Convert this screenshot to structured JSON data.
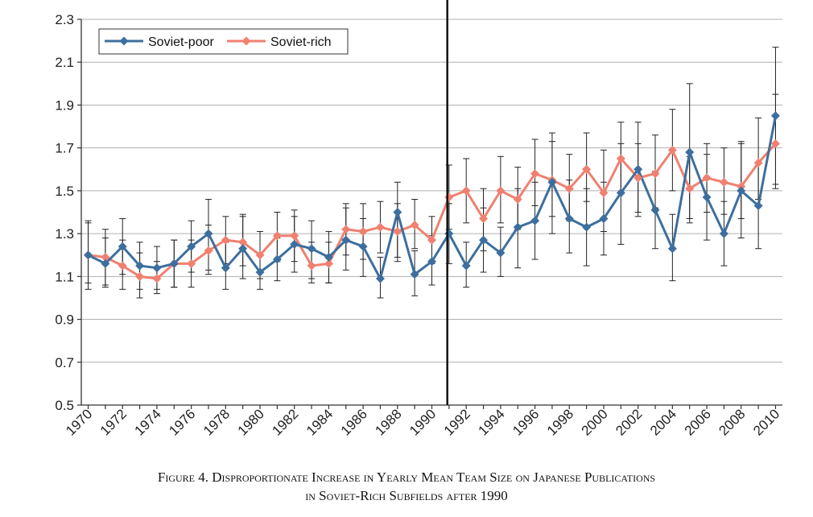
{
  "chart_data": {
    "type": "line",
    "title": "",
    "xlabel": "",
    "ylabel": "",
    "x": [
      1970,
      1971,
      1972,
      1973,
      1974,
      1975,
      1976,
      1977,
      1978,
      1979,
      1980,
      1981,
      1982,
      1983,
      1984,
      1985,
      1986,
      1987,
      1988,
      1989,
      1990,
      1991,
      1992,
      1993,
      1994,
      1995,
      1996,
      1997,
      1998,
      1999,
      2000,
      2001,
      2002,
      2003,
      2004,
      2005,
      2006,
      2007,
      2008,
      2009,
      2010
    ],
    "xticks": [
      1970,
      1972,
      1974,
      1976,
      1978,
      1980,
      1982,
      1984,
      1986,
      1988,
      1990,
      1992,
      1994,
      1996,
      1998,
      2000,
      2002,
      2004,
      2006,
      2008,
      2010
    ],
    "yticks": [
      "0.5",
      "0.7",
      "0.9",
      "1.1",
      "1.3",
      "1.5",
      "1.7",
      "1.9",
      "2.1",
      "2.3"
    ],
    "ylim": [
      0.5,
      2.3
    ],
    "xlim": [
      1969.6,
      2010.4
    ],
    "grid": "horizontal",
    "legend_position": "top-left",
    "vertical_reference_line_x": 1990.9,
    "series": [
      {
        "name": "Soviet-poor",
        "color": "#3d6f9e",
        "marker": "diamond",
        "values": [
          1.2,
          1.16,
          1.24,
          1.15,
          1.14,
          1.16,
          1.24,
          1.3,
          1.14,
          1.23,
          1.12,
          1.18,
          1.25,
          1.23,
          1.19,
          1.27,
          1.24,
          1.09,
          1.4,
          1.11,
          1.17,
          1.3,
          1.15,
          1.27,
          1.21,
          1.33,
          1.36,
          1.54,
          1.37,
          1.33,
          1.37,
          1.49,
          1.6,
          1.41,
          1.23,
          1.68,
          1.47,
          1.3,
          1.5,
          1.43,
          1.85
        ],
        "error_low": [
          1.04,
          1.05,
          1.11,
          1.04,
          1.04,
          1.05,
          1.12,
          1.13,
          1.04,
          1.09,
          1.04,
          1.08,
          1.12,
          1.09,
          1.07,
          1.13,
          1.1,
          1.0,
          1.17,
          1.01,
          1.06,
          1.16,
          1.05,
          1.12,
          1.1,
          1.14,
          1.18,
          1.3,
          1.21,
          1.15,
          1.2,
          1.25,
          1.38,
          1.23,
          1.08,
          1.35,
          1.27,
          1.15,
          1.28,
          1.23,
          1.53
        ],
        "error_high": [
          1.36,
          1.28,
          1.37,
          1.26,
          1.24,
          1.27,
          1.36,
          1.46,
          1.26,
          1.39,
          1.21,
          1.28,
          1.38,
          1.36,
          1.31,
          1.42,
          1.37,
          1.19,
          1.54,
          1.22,
          1.29,
          1.44,
          1.26,
          1.42,
          1.33,
          1.51,
          1.54,
          1.77,
          1.55,
          1.51,
          1.54,
          1.72,
          1.82,
          1.59,
          1.39,
          2.0,
          1.67,
          1.45,
          1.72,
          1.63,
          2.17
        ]
      },
      {
        "name": "Soviet-rich",
        "color": "#f08070",
        "marker": "diamond",
        "values": [
          1.2,
          1.19,
          1.15,
          1.1,
          1.09,
          1.16,
          1.16,
          1.22,
          1.27,
          1.26,
          1.2,
          1.29,
          1.29,
          1.15,
          1.16,
          1.32,
          1.31,
          1.33,
          1.31,
          1.34,
          1.27,
          1.47,
          1.5,
          1.37,
          1.5,
          1.46,
          1.58,
          1.55,
          1.51,
          1.6,
          1.49,
          1.65,
          1.56,
          1.58,
          1.69,
          1.51,
          1.56,
          1.54,
          1.52,
          1.63,
          1.72
        ],
        "error_low": [
          1.07,
          1.06,
          1.04,
          1.0,
          1.02,
          1.05,
          1.05,
          1.11,
          1.16,
          1.15,
          1.09,
          1.17,
          1.17,
          1.07,
          1.07,
          1.2,
          1.18,
          1.21,
          1.19,
          1.23,
          1.16,
          1.32,
          1.35,
          1.22,
          1.35,
          1.32,
          1.43,
          1.38,
          1.36,
          1.45,
          1.31,
          1.49,
          1.4,
          1.42,
          1.5,
          1.37,
          1.4,
          1.39,
          1.37,
          1.46,
          1.51
        ],
        "error_high": [
          1.35,
          1.32,
          1.27,
          1.21,
          1.17,
          1.27,
          1.27,
          1.34,
          1.38,
          1.38,
          1.31,
          1.4,
          1.41,
          1.26,
          1.26,
          1.44,
          1.44,
          1.45,
          1.44,
          1.46,
          1.38,
          1.62,
          1.65,
          1.51,
          1.66,
          1.61,
          1.74,
          1.73,
          1.67,
          1.77,
          1.69,
          1.82,
          1.72,
          1.76,
          1.88,
          1.66,
          1.72,
          1.7,
          1.73,
          1.84,
          1.95
        ]
      }
    ]
  },
  "caption": {
    "line1": "Figure 4. Disproportionate Increase in Yearly Mean Team Size on Japanese Publications",
    "line2": "in Soviet-Rich Subfields after 1990"
  }
}
